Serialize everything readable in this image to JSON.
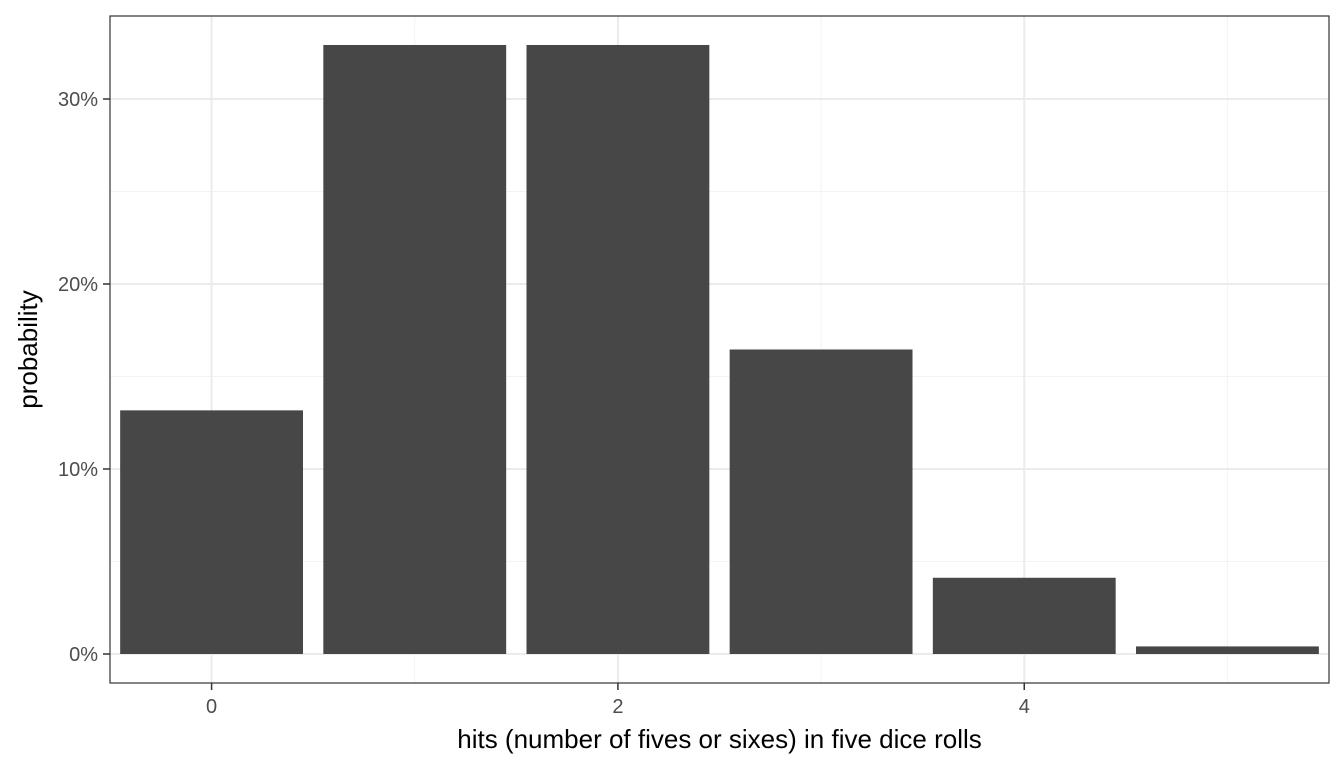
{
  "chart_data": {
    "type": "bar",
    "title": "",
    "xlabel": "hits (number of fives or sixes) in five dice rolls",
    "ylabel": "probability",
    "x": [
      0,
      1,
      2,
      3,
      4,
      5
    ],
    "values": [
      0.1317,
      0.3292,
      0.3292,
      0.1646,
      0.0412,
      0.0041
    ],
    "xlim": [
      -0.5,
      5.5
    ],
    "ylim": [
      0,
      0.33
    ],
    "x_ticks": [
      0,
      2,
      4
    ],
    "x_tick_labels": [
      "0",
      "2",
      "4"
    ],
    "y_ticks": [
      0,
      0.1,
      0.2,
      0.3
    ],
    "y_tick_labels": [
      "0%",
      "10%",
      "20%",
      "30%"
    ],
    "grid": true,
    "legend": "none",
    "colors": {
      "bar": "#474747",
      "panel_border": "#333333",
      "grid_major": "#ebebeb",
      "grid_minor": "#f3f3f3"
    }
  }
}
